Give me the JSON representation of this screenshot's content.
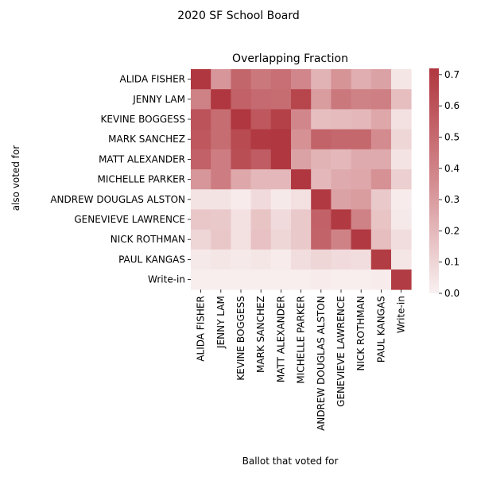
{
  "chart_data": {
    "type": "heatmap",
    "suptitle": "2020 SF School Board",
    "title": "Overlapping Fraction",
    "xlabel": "Ballot that voted for",
    "ylabel": "also voted for",
    "x_categories": [
      "ALIDA FISHER",
      "JENNY LAM",
      "KEVINE BOGGESS",
      "MARK SANCHEZ",
      "MATT ALEXANDER",
      "MICHELLE PARKER",
      "ANDREW DOUGLAS ALSTON",
      "GENEVIEVE LAWRENCE",
      "NICK ROTHMAN",
      "PAUL KANGAS",
      "Write-in"
    ],
    "y_categories": [
      "ALIDA FISHER",
      "JENNY LAM",
      "KEVINE BOGGESS",
      "MARK SANCHEZ",
      "MATT ALEXANDER",
      "MICHELLE PARKER",
      "ANDREW DOUGLAS ALSTON",
      "GENEVIEVE LAWRENCE",
      "NICK ROTHMAN",
      "PAUL KANGAS",
      "Write-in"
    ],
    "values": [
      [
        0.72,
        0.32,
        0.52,
        0.44,
        0.48,
        0.38,
        0.22,
        0.33,
        0.24,
        0.28,
        0.04
      ],
      [
        0.4,
        0.72,
        0.54,
        0.5,
        0.49,
        0.66,
        0.3,
        0.44,
        0.4,
        0.41,
        0.18
      ],
      [
        0.6,
        0.49,
        0.72,
        0.58,
        0.68,
        0.38,
        0.18,
        0.19,
        0.2,
        0.26,
        0.06
      ],
      [
        0.58,
        0.49,
        0.64,
        0.71,
        0.72,
        0.34,
        0.53,
        0.51,
        0.51,
        0.36,
        0.1
      ],
      [
        0.54,
        0.42,
        0.62,
        0.56,
        0.72,
        0.28,
        0.22,
        0.2,
        0.25,
        0.25,
        0.05
      ],
      [
        0.32,
        0.42,
        0.26,
        0.2,
        0.2,
        0.72,
        0.2,
        0.25,
        0.26,
        0.34,
        0.12
      ],
      [
        0.05,
        0.05,
        0.02,
        0.08,
        0.03,
        0.06,
        0.71,
        0.28,
        0.3,
        0.14,
        0.02
      ],
      [
        0.15,
        0.14,
        0.06,
        0.16,
        0.08,
        0.14,
        0.54,
        0.71,
        0.4,
        0.16,
        0.03
      ],
      [
        0.1,
        0.15,
        0.06,
        0.17,
        0.1,
        0.14,
        0.53,
        0.4,
        0.71,
        0.18,
        0.07
      ],
      [
        0.03,
        0.04,
        0.03,
        0.04,
        0.02,
        0.07,
        0.1,
        0.08,
        0.07,
        0.7,
        0.04
      ],
      [
        0.01,
        0.01,
        0.01,
        0.01,
        0.01,
        0.01,
        0.02,
        0.01,
        0.01,
        0.02,
        0.7
      ]
    ],
    "colorbar": {
      "min": 0.0,
      "max": 0.72,
      "ticks": [
        "0.0",
        "0.1",
        "0.2",
        "0.3",
        "0.4",
        "0.5",
        "0.6",
        "0.7"
      ]
    },
    "colormap": {
      "low": "#f9f1f1",
      "mid": "#d38b8f",
      "high": "#b0373f"
    },
    "grid": false
  }
}
